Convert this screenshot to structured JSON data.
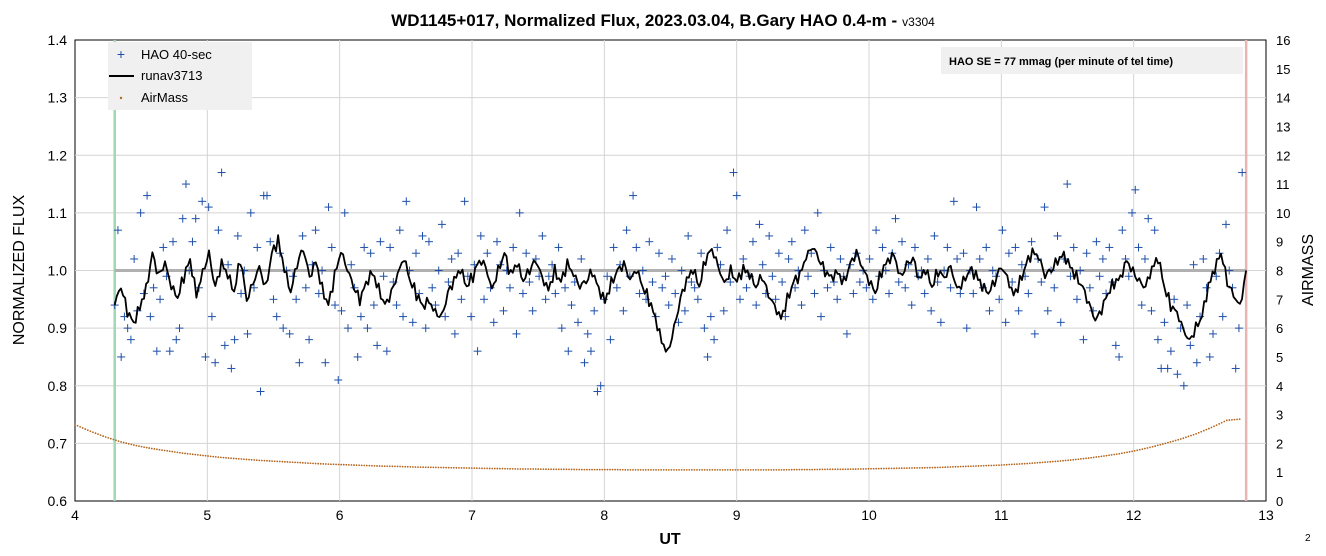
{
  "chart_data": {
    "type": "scatter",
    "title": "WD1145+017, Normalized Flux, 2023.03.04, B.Gary HAO 0.4-m -",
    "version": "v3304",
    "xlabel": "UT",
    "ylabel": "NORMALIZED FLUX",
    "y2label": "AIRMASS",
    "xlim": [
      4,
      13
    ],
    "ylim": [
      0.6,
      1.4
    ],
    "y2lim": [
      0,
      16
    ],
    "x_ticks": [
      "4",
      "5",
      "6",
      "7",
      "8",
      "9",
      "10",
      "11",
      "12",
      "13"
    ],
    "y_ticks": [
      "0.6",
      "0.7",
      "0.8",
      "0.9",
      "1.0",
      "1.1",
      "1.2",
      "1.3",
      "1.4"
    ],
    "y2_ticks": [
      "0",
      "1",
      "2",
      "3",
      "4",
      "5",
      "6",
      "7",
      "8",
      "9",
      "10",
      "11",
      "12",
      "13",
      "14",
      "15",
      "16"
    ],
    "grid": true,
    "legend_position": "top-left",
    "reference_line_y": 1.0,
    "start_marker_x": 4.3,
    "end_marker_x": 12.85,
    "annotation": "HAO SE =  77 mmag (per minute of tel time)",
    "corner_label": "2",
    "series": [
      {
        "name": "HAO 40-sec",
        "style": "cross",
        "color": "#1f4fa8",
        "x_start": 4.3,
        "x_end": 12.82,
        "values": [
          0.94,
          1.07,
          0.85,
          0.92,
          0.9,
          0.88,
          1.02,
          0.93,
          1.1,
          0.96,
          1.13,
          0.92,
          0.97,
          0.86,
          0.95,
          1.04,
          0.99,
          0.86,
          1.05,
          0.88,
          0.9,
          1.09,
          1.15,
          1.0,
          1.05,
          1.09,
          0.97,
          1.12,
          0.85,
          1.11,
          0.92,
          0.84,
          1.07,
          1.17,
          0.87,
          1.01,
          0.83,
          0.88,
          1.06,
          0.96,
          1.0,
          0.89,
          1.1,
          0.97,
          1.04,
          0.79,
          1.13,
          1.13,
          1.05,
          0.95,
          0.92,
          1.03,
          0.9,
          1.0,
          0.89,
          0.99,
          0.95,
          0.84,
          1.06,
          0.97,
          0.88,
          1.01,
          1.07,
          0.96,
          1.0,
          0.84,
          1.11,
          1.04,
          0.94,
          0.81,
          0.93,
          1.1,
          0.9,
          1.01,
          0.97,
          0.85,
          0.92,
          1.04,
          0.9,
          1.03,
          0.94,
          0.87,
          1.05,
          0.99,
          0.86,
          1.04,
          0.98,
          0.94,
          1.07,
          0.92,
          1.12,
          1.0,
          0.91,
          1.03,
          0.96,
          1.06,
          0.9,
          1.05,
          0.97,
          0.94,
          1.0,
          1.08,
          0.92,
          0.98,
          1.02,
          0.89,
          1.03,
          0.95,
          1.12,
          0.99,
          0.92,
          1.01,
          0.86,
          1.06,
          0.95,
          1.03,
          0.97,
          0.91,
          1.05,
          1.01,
          0.93,
          1.0,
          0.97,
          1.04,
          0.89,
          1.1,
          0.96,
          1.03,
          0.98,
          0.93,
          1.02,
          0.99,
          1.06,
          0.95,
          0.99,
          1.01,
          0.96,
          1.04,
          0.9,
          0.97,
          0.86,
          0.94,
          0.98,
          0.91,
          1.02,
          0.84,
          0.89,
          0.86,
          0.93,
          0.79,
          0.8,
          0.95,
          0.99,
          0.88,
          1.04,
          0.97,
          1.01,
          0.93,
          1.07,
          0.99,
          1.13,
          1.04,
          0.96,
          1.0,
          0.95,
          1.05,
          0.98,
          0.92,
          1.03,
          0.97,
          0.99,
          0.94,
          1.02,
          0.96,
          0.91,
          1.0,
          0.93,
          1.06,
          0.98,
          0.97,
          0.95,
          1.03,
          0.9,
          0.85,
          0.92,
          0.88,
          1.04,
          1.01,
          0.93,
          1.07,
          0.98,
          1.17,
          1.13,
          0.95,
          1.02,
          0.97,
          0.99,
          1.05,
          0.94,
          1.08,
          1.01,
          0.96,
          1.06,
          0.99,
          0.95,
          1.03,
          0.98,
          0.92,
          1.02,
          1.05,
          0.97,
          1.0,
          0.94,
          1.07,
          0.99,
          1.03,
          0.96,
          1.1,
          0.92,
          1.0,
          0.97,
          1.04,
          0.98,
          0.95,
          1.02,
          0.99,
          0.89,
          1.01,
          0.96,
          1.03,
          0.98,
          1.0,
          0.97,
          1.02,
          0.95,
          1.07,
          0.99,
          1.04,
          1.0,
          0.96,
          1.03,
          1.09,
          0.98,
          1.05,
          0.97,
          1.01,
          0.94,
          1.04,
          0.99,
          1.0,
          0.96,
          1.02,
          0.93,
          1.06,
          0.98,
          0.91,
          1.0,
          1.04,
          0.97,
          1.12,
          1.02,
          0.96,
          1.03,
          0.9,
          1.0,
          0.96,
          1.11,
          1.02,
          0.97,
          1.04,
          0.93,
          1.0,
          0.99,
          0.95,
          1.07,
          0.91,
          1.03,
          0.98,
          1.04,
          0.93,
          1.01,
          0.99,
          0.96,
          1.05,
          0.89,
          1.02,
          0.98,
          1.11,
          0.93,
          1.0,
          0.97,
          1.06,
          0.91,
          1.02,
          1.15,
          0.99,
          1.04,
          0.95,
          1.0,
          0.88,
          1.03,
          0.97,
          0.93,
          1.05,
          0.99,
          1.02,
          0.96,
          1.04,
          0.98,
          0.87,
          0.85,
          1.07,
          1.02,
          0.99,
          1.1,
          1.14,
          1.04,
          0.94,
          1.02,
          1.09,
          0.93,
          1.07,
          0.88,
          0.83,
          0.91,
          0.83,
          0.86,
          0.95,
          0.82,
          0.9,
          0.8,
          0.94,
          0.87,
          1.01,
          0.84,
          0.92,
          1.02,
          0.97,
          0.85,
          0.89,
          0.99,
          1.03,
          0.92,
          1.08,
          1.0,
          0.97,
          0.83,
          0.9,
          1.17
        ]
      },
      {
        "name": "runav3713",
        "style": "line",
        "color": "#000000",
        "x_start": 4.3,
        "x_end": 12.85,
        "values": [
          0.94,
          0.97,
          0.93,
          0.91,
          0.94,
          0.97,
          1.03,
          0.99,
          1.01,
          0.97,
          0.95,
          0.99,
          1.02,
          0.96,
          1.0,
          1.03,
          0.97,
          1.01,
          0.99,
          0.96,
          1.02,
          0.95,
          0.98,
          1.01,
          0.97,
          1.03,
          1.05,
          1.0,
          0.96,
          1.01,
          1.04,
          0.99,
          1.02,
          0.97,
          0.94,
          0.99,
          1.03,
          1.0,
          0.97,
          0.95,
          0.98,
          1.0,
          0.97,
          0.94,
          0.96,
          0.99,
          1.02,
          0.98,
          0.96,
          0.94,
          0.95,
          0.93,
          0.92,
          0.96,
          0.98,
          1.0,
          0.97,
          0.99,
          1.02,
          1.01,
          0.97,
          1.0,
          1.03,
          0.99,
          1.01,
          0.98,
          1.0,
          1.02,
          0.99,
          0.97,
          1.0,
          0.98,
          1.01,
          0.99,
          0.97,
          0.98,
          1.0,
          0.97,
          0.95,
          0.98,
          1.0,
          1.01,
          0.98,
          1.0,
          0.97,
          0.95,
          0.92,
          0.88,
          0.86,
          0.9,
          0.95,
          0.98,
          1.0,
          0.97,
          1.02,
          1.04,
          1.01,
          0.98,
          1.0,
          0.98,
          1.0,
          0.99,
          0.97,
          0.99,
          0.96,
          0.94,
          0.92,
          0.95,
          0.98,
          0.99,
          1.02,
          1.04,
          1.02,
          1.0,
          0.99,
          1.0,
          0.98,
          1.01,
          1.03,
          1.0,
          0.98,
          0.96,
          1.0,
          1.02,
          1.03,
          0.99,
          1.01,
          1.02,
          0.98,
          1.0,
          0.97,
          1.0,
          0.99,
          1.01,
          0.97,
          0.98,
          1.0,
          0.99,
          0.97,
          0.96,
          0.98,
          1.01,
          0.99,
          0.96,
          0.98,
          1.01,
          1.03,
          1.02,
          0.99,
          1.0,
          1.02,
          1.03,
          1.01,
          0.99,
          0.97,
          0.94,
          0.91,
          0.93,
          0.96,
          0.98,
          0.99,
          1.02,
          1.0,
          0.98,
          0.97,
          1.0,
          1.02,
          0.97,
          0.94,
          0.93,
          0.9,
          0.88,
          0.9,
          0.92,
          0.97,
          1.0,
          1.03,
          0.98,
          0.96,
          0.94,
          1.0
        ],
        "wiggle": true
      },
      {
        "name": "AirMass",
        "style": "dot",
        "color": "#b5651d",
        "axis": "y2",
        "x_start": 4.0,
        "x_end": 12.82,
        "values": [
          2.65,
          2.42,
          2.22,
          2.05,
          1.92,
          1.82,
          1.74,
          1.66,
          1.6,
          1.54,
          1.49,
          1.45,
          1.41,
          1.38,
          1.35,
          1.32,
          1.29,
          1.27,
          1.25,
          1.23,
          1.21,
          1.2,
          1.18,
          1.17,
          1.16,
          1.15,
          1.14,
          1.13,
          1.12,
          1.11,
          1.11,
          1.1,
          1.1,
          1.09,
          1.09,
          1.09,
          1.08,
          1.08,
          1.08,
          1.08,
          1.08,
          1.08,
          1.08,
          1.08,
          1.08,
          1.08,
          1.08,
          1.09,
          1.09,
          1.1,
          1.1,
          1.11,
          1.12,
          1.13,
          1.14,
          1.15,
          1.16,
          1.18,
          1.2,
          1.22,
          1.24,
          1.27,
          1.3,
          1.34,
          1.38,
          1.43,
          1.49,
          1.56,
          1.64,
          1.74,
          1.86,
          2.0,
          2.15,
          2.33,
          2.55,
          2.8,
          2.85
        ]
      }
    ]
  }
}
